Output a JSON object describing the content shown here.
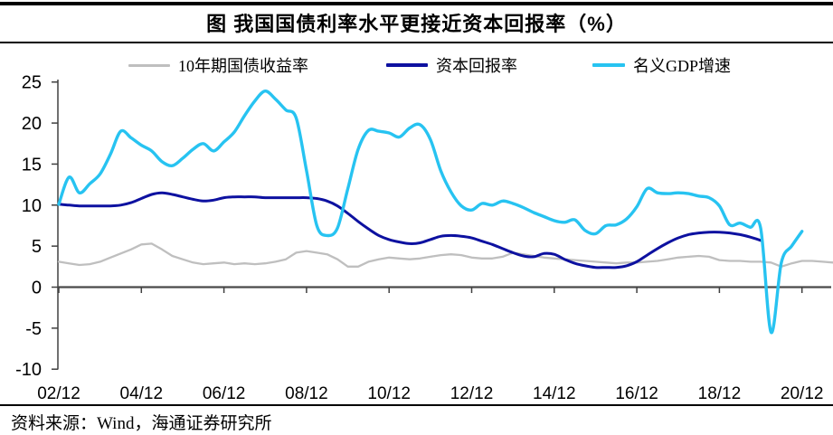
{
  "header": {
    "title": "图 我国国债利率水平更接近资本回报率（%）"
  },
  "legend": {
    "items": [
      {
        "label": "10年期国债收益率",
        "color": "#BFBFBF"
      },
      {
        "label": "资本回报率",
        "color": "#0D11A0"
      },
      {
        "label": "名义GDP增速",
        "color": "#27C3F1"
      }
    ]
  },
  "footer": {
    "source": "资料来源：Wind，海通证券研究所"
  },
  "chart_data": {
    "type": "line",
    "title": "图 我国国债利率水平更接近资本回报率（%）",
    "xlabel": "",
    "ylabel": "",
    "x_tick_labels": [
      "02/12",
      "04/12",
      "06/12",
      "08/12",
      "10/12",
      "12/12",
      "14/12",
      "16/12",
      "18/12",
      "20/12"
    ],
    "x_frequency": "quarterly",
    "yticks": [
      25,
      20,
      15,
      10,
      5,
      0,
      -5,
      -10
    ],
    "ylim": [
      -10,
      25
    ],
    "grid": false,
    "legend_position": "top",
    "series": [
      {
        "name": "10年期国债收益率",
        "key": "bond10y-yield",
        "color": "#BFBFBF",
        "line_width": 2.3,
        "smooth": false,
        "values": [
          3.1,
          2.9,
          2.7,
          2.8,
          3.1,
          3.6,
          4.1,
          4.6,
          5.2,
          5.3,
          4.6,
          3.8,
          3.4,
          3.0,
          2.8,
          2.9,
          3.0,
          2.8,
          2.9,
          2.8,
          2.9,
          3.1,
          3.4,
          4.2,
          4.4,
          4.2,
          4.0,
          3.4,
          2.5,
          2.5,
          3.1,
          3.4,
          3.6,
          3.5,
          3.4,
          3.5,
          3.7,
          3.9,
          4.0,
          3.9,
          3.6,
          3.5,
          3.5,
          3.7,
          4.2,
          4.0,
          3.8,
          3.6,
          3.5,
          3.4,
          3.3,
          3.2,
          3.1,
          3.0,
          2.9,
          3.0,
          3.0,
          3.1,
          3.2,
          3.4,
          3.6,
          3.7,
          3.8,
          3.7,
          3.3,
          3.2,
          3.2,
          3.1,
          3.1,
          3.0,
          2.5,
          2.9,
          3.2,
          3.2,
          3.1,
          3.0
        ]
      },
      {
        "name": "资本回报率",
        "key": "capital-return",
        "color": "#0D11A0",
        "line_width": 3.0,
        "smooth": true,
        "values": [
          10.1,
          10.0,
          9.9,
          9.9,
          9.9,
          9.9,
          10.0,
          10.3,
          10.8,
          11.3,
          11.5,
          11.3,
          11.0,
          10.7,
          10.5,
          10.6,
          10.9,
          11.0,
          11.0,
          11.0,
          10.9,
          10.9,
          10.9,
          10.9,
          10.9,
          10.8,
          10.5,
          9.9,
          9.0,
          8.0,
          7.1,
          6.3,
          5.8,
          5.5,
          5.3,
          5.4,
          5.8,
          6.2,
          6.3,
          6.2,
          6.0,
          5.6,
          5.2,
          4.7,
          4.2,
          3.8,
          3.7,
          4.1,
          4.0,
          3.4,
          2.9,
          2.6,
          2.4,
          2.4,
          2.4,
          2.6,
          3.1,
          3.9,
          4.7,
          5.4,
          6.0,
          6.4,
          6.6,
          6.7,
          6.7,
          6.6,
          6.4,
          6.1,
          5.7
        ]
      },
      {
        "name": "名义GDP增速",
        "key": "nominal-gdp-growth",
        "color": "#27C3F1",
        "line_width": 3.4,
        "smooth": true,
        "values": [
          10.1,
          13.4,
          11.5,
          12.6,
          13.8,
          16.2,
          19.0,
          18.2,
          17.3,
          16.6,
          15.3,
          14.8,
          15.7,
          16.8,
          17.5,
          16.6,
          17.7,
          18.9,
          20.9,
          22.7,
          23.9,
          22.9,
          21.6,
          20.6,
          14.2,
          7.5,
          6.3,
          7.2,
          12.0,
          16.8,
          19.1,
          19.0,
          18.8,
          18.3,
          19.4,
          19.8,
          18.0,
          14.2,
          11.6,
          9.9,
          9.4,
          10.2,
          10.0,
          10.5,
          10.2,
          9.7,
          9.1,
          8.6,
          8.1,
          7.9,
          8.2,
          6.9,
          6.5,
          7.5,
          7.6,
          8.3,
          9.8,
          12.0,
          11.5,
          11.4,
          11.5,
          11.4,
          11.1,
          10.9,
          9.9,
          7.6,
          7.8,
          7.3,
          7.2,
          -5.5,
          3.0,
          5.0,
          6.8
        ]
      }
    ]
  }
}
